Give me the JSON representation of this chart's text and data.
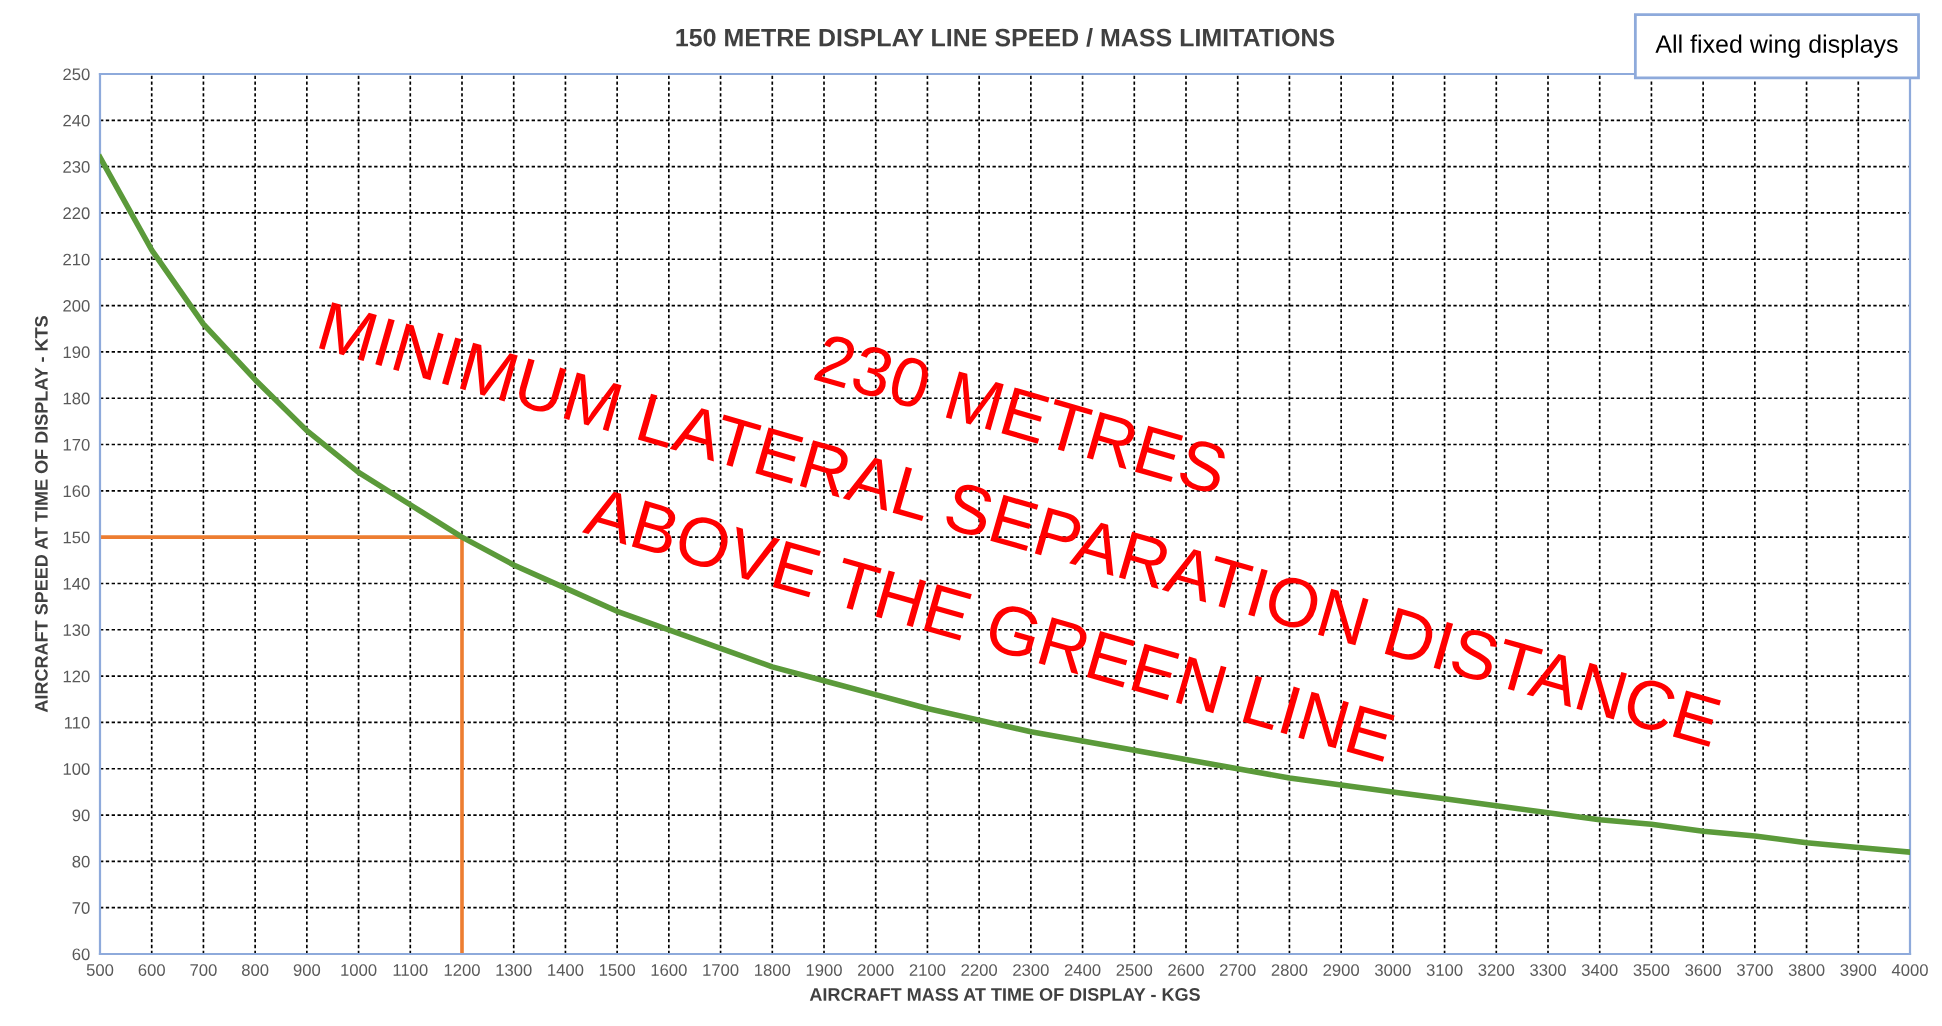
{
  "chart_data": {
    "type": "line",
    "title": "150 METRE DISPLAY LINE SPEED / MASS LIMITATIONS",
    "xlabel": "AIRCRAFT MASS AT TIME OF DISPLAY - KGS",
    "ylabel": "AIRCRAFT SPEED AT TIME OF DISPLAY - KTS",
    "series": [
      {
        "color": "#5b9a3a",
        "x": [
          500,
          600,
          700,
          800,
          900,
          1000,
          1100,
          1200,
          1300,
          1400,
          1500,
          1600,
          1700,
          1800,
          1900,
          2000,
          2100,
          2200,
          2300,
          2400,
          2500,
          2600,
          2700,
          2800,
          2900,
          3000,
          3100,
          3200,
          3300,
          3400,
          3500,
          3600,
          3700,
          3800,
          3900,
          4000
        ],
        "values": [
          232,
          212,
          196,
          184,
          173,
          164,
          157,
          150,
          144,
          139,
          134,
          130,
          126,
          122,
          119,
          116,
          113,
          110.5,
          108,
          106,
          104,
          102,
          100,
          98,
          96.5,
          95,
          93.5,
          92,
          90.5,
          89,
          88,
          86.5,
          85.5,
          84,
          83,
          82
        ]
      },
      {
        "color": "#ed7d31",
        "x": [
          500,
          1200,
          1200
        ],
        "values": [
          150,
          150,
          60
        ]
      }
    ],
    "annotations": [
      "230 METRES",
      "MINIMUM LATERAL SEPARATION DISTANCE",
      "ABOVE THE GREEN LINE",
      "All fixed wing displays"
    ],
    "xlim": [
      500,
      4000
    ],
    "xticks": [
      500,
      600,
      700,
      800,
      900,
      1000,
      1100,
      1200,
      1300,
      1400,
      1500,
      1600,
      1700,
      1800,
      1900,
      2000,
      2100,
      2200,
      2300,
      2400,
      2500,
      2600,
      2700,
      2800,
      2900,
      3000,
      3100,
      3200,
      3300,
      3400,
      3500,
      3600,
      3700,
      3800,
      3900,
      4000
    ],
    "ylim": [
      60,
      250
    ],
    "yticks": [
      60,
      70,
      80,
      90,
      100,
      110,
      120,
      130,
      140,
      150,
      160,
      170,
      180,
      190,
      200,
      210,
      220,
      230,
      240,
      250
    ],
    "grid": true,
    "line_style": "solid",
    "marker": "none",
    "legend": false
  }
}
